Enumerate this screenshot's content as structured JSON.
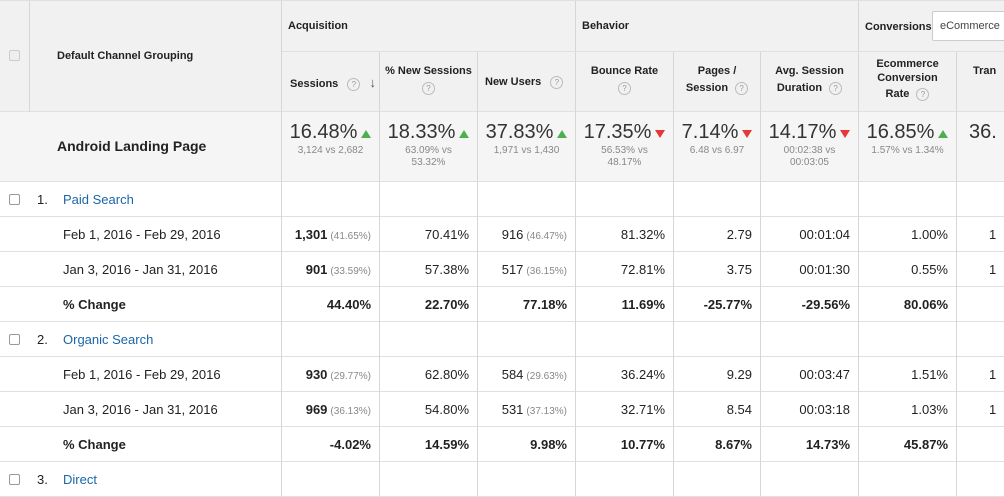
{
  "header": {
    "dimension_label": "Default Channel Grouping",
    "groups": [
      "Acquisition",
      "Behavior",
      "Conversions"
    ],
    "conversion_select": "eCommerce",
    "columns": [
      {
        "label1": "Sessions",
        "label2": ""
      },
      {
        "label1": "% New Sessions",
        "label2": ""
      },
      {
        "label1": "New Users",
        "label2": ""
      },
      {
        "label1": "Bounce Rate",
        "label2": ""
      },
      {
        "label1": "Pages /",
        "label2": "Session"
      },
      {
        "label1": "Avg. Session",
        "label2": "Duration"
      },
      {
        "label1": "Ecommerce",
        "label2": "Conversion",
        "label3": "Rate"
      },
      {
        "label1": "Tran",
        "label2": ""
      }
    ],
    "help_glyph": "?",
    "sort_arrow": "↓"
  },
  "summary": {
    "label": "Android Landing Page",
    "metrics": [
      {
        "value": "16.48%",
        "trend": "up",
        "sub1": "3,124 vs 2,682",
        "sub2": ""
      },
      {
        "value": "18.33%",
        "trend": "up",
        "sub1": "63.09% vs",
        "sub2": "53.32%"
      },
      {
        "value": "37.83%",
        "trend": "up",
        "sub1": "1,971 vs 1,430",
        "sub2": ""
      },
      {
        "value": "17.35%",
        "trend": "down",
        "sub1": "56.53% vs",
        "sub2": "48.17%"
      },
      {
        "value": "7.14%",
        "trend": "down",
        "sub1": "6.48 vs 6.97",
        "sub2": ""
      },
      {
        "value": "14.17%",
        "trend": "down",
        "sub1": "00:02:38 vs",
        "sub2": "00:03:05"
      },
      {
        "value": "16.85%",
        "trend": "up",
        "sub1": "1.57% vs 1.34%",
        "sub2": ""
      },
      {
        "value": "36.",
        "trend": "",
        "sub1": "",
        "sub2": ""
      }
    ]
  },
  "groups_data": [
    {
      "index": "1.",
      "name": "Paid Search",
      "rows": [
        {
          "label": "Feb 1, 2016 - Feb 29, 2016",
          "sessions": "1,301",
          "sessions_pct": "(41.65%)",
          "new_sessions": "70.41%",
          "new_users": "916",
          "new_users_pct": "(46.47%)",
          "bounce": "81.32%",
          "pages": "2.79",
          "duration": "00:01:04",
          "conv": "1.00%",
          "tran": "1"
        },
        {
          "label": "Jan 3, 2016 - Jan 31, 2016",
          "sessions": "901",
          "sessions_pct": "(33.59%)",
          "new_sessions": "57.38%",
          "new_users": "517",
          "new_users_pct": "(36.15%)",
          "bounce": "72.81%",
          "pages": "3.75",
          "duration": "00:01:30",
          "conv": "0.55%",
          "tran": "1"
        }
      ],
      "change": {
        "label": "% Change",
        "sessions": "44.40%",
        "new_sessions": "22.70%",
        "new_users": "77.18%",
        "bounce": "11.69%",
        "pages": "-25.77%",
        "duration": "-29.56%",
        "conv": "80.06%"
      }
    },
    {
      "index": "2.",
      "name": "Organic Search",
      "rows": [
        {
          "label": "Feb 1, 2016 - Feb 29, 2016",
          "sessions": "930",
          "sessions_pct": "(29.77%)",
          "new_sessions": "62.80%",
          "new_users": "584",
          "new_users_pct": "(29.63%)",
          "bounce": "36.24%",
          "pages": "9.29",
          "duration": "00:03:47",
          "conv": "1.51%",
          "tran": "1"
        },
        {
          "label": "Jan 3, 2016 - Jan 31, 2016",
          "sessions": "969",
          "sessions_pct": "(36.13%)",
          "new_sessions": "54.80%",
          "new_users": "531",
          "new_users_pct": "(37.13%)",
          "bounce": "32.71%",
          "pages": "8.54",
          "duration": "00:03:18",
          "conv": "1.03%",
          "tran": "1"
        }
      ],
      "change": {
        "label": "% Change",
        "sessions": "-4.02%",
        "new_sessions": "14.59%",
        "new_users": "9.98%",
        "bounce": "10.77%",
        "pages": "8.67%",
        "duration": "14.73%",
        "conv": "45.87%"
      }
    },
    {
      "index": "3.",
      "name": "Direct",
      "rows": [],
      "change": null
    }
  ]
}
